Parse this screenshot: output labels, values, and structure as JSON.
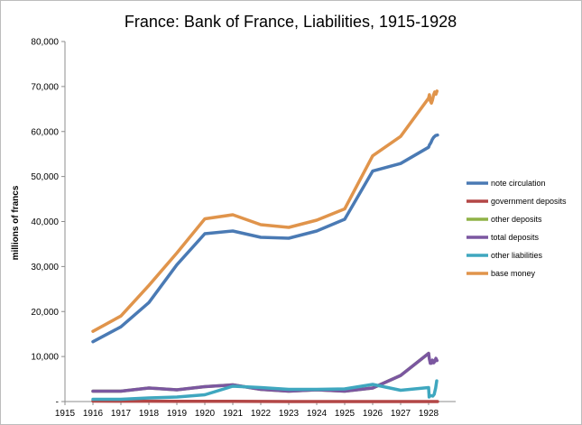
{
  "chart_data": {
    "type": "line",
    "title": "France: Bank of France, Liabilities, 1915-1928",
    "xlabel": "",
    "ylabel": "millions of francs",
    "xlim": [
      1915,
      1928.35
    ],
    "ylim": [
      0,
      80000
    ],
    "x_ticks": [
      "1915",
      "1916",
      "1917",
      "1918",
      "1919",
      "1920",
      "1921",
      "1922",
      "1923",
      "1924",
      "1925",
      "1926",
      "1927",
      "1928"
    ],
    "y_ticks": [
      "-",
      "10,000",
      "20,000",
      "30,000",
      "40,000",
      "50,000",
      "60,000",
      "70,000",
      "80,000"
    ],
    "legend_position": "right",
    "grid": false,
    "series": [
      {
        "name": "note circulation",
        "color": "#4a7ab4",
        "points": [
          [
            1916,
            13300
          ],
          [
            1917,
            16600
          ],
          [
            1918,
            22000
          ],
          [
            1919,
            30400
          ],
          [
            1920,
            37300
          ],
          [
            1921,
            37900
          ],
          [
            1922,
            36500
          ],
          [
            1923,
            36300
          ],
          [
            1924,
            37900
          ],
          [
            1925,
            40500
          ],
          [
            1926,
            51200
          ],
          [
            1927,
            52900
          ],
          [
            1928,
            56500
          ],
          [
            1928.03,
            57000
          ],
          [
            1928.08,
            57500
          ],
          [
            1928.13,
            58200
          ],
          [
            1928.18,
            58700
          ],
          [
            1928.25,
            59100
          ],
          [
            1928.32,
            59200
          ]
        ]
      },
      {
        "name": "government deposits",
        "color": "#b34746",
        "points": [
          [
            1916,
            100
          ],
          [
            1917,
            80
          ],
          [
            1918,
            80
          ],
          [
            1919,
            60
          ],
          [
            1920,
            60
          ],
          [
            1921,
            60
          ],
          [
            1922,
            30
          ],
          [
            1923,
            10
          ],
          [
            1924,
            10
          ],
          [
            1925,
            10
          ],
          [
            1926,
            10
          ],
          [
            1927,
            10
          ],
          [
            1928,
            10
          ],
          [
            1928.32,
            10
          ]
        ]
      },
      {
        "name": "other deposits",
        "color": "#8fb246",
        "points": [
          [
            1916,
            2300
          ],
          [
            1917,
            2300
          ],
          [
            1918,
            3000
          ],
          [
            1919,
            2600
          ],
          [
            1920,
            3300
          ],
          [
            1921,
            3700
          ],
          [
            1922,
            2700
          ],
          [
            1923,
            2300
          ],
          [
            1924,
            2600
          ],
          [
            1925,
            2300
          ],
          [
            1926,
            3000
          ],
          [
            1927,
            5800
          ],
          [
            1928,
            10700
          ]
        ]
      },
      {
        "name": "total deposits",
        "color": "#7b57a0",
        "points": [
          [
            1916,
            2300
          ],
          [
            1917,
            2300
          ],
          [
            1918,
            3000
          ],
          [
            1919,
            2600
          ],
          [
            1920,
            3300
          ],
          [
            1921,
            3700
          ],
          [
            1922,
            2700
          ],
          [
            1923,
            2300
          ],
          [
            1924,
            2600
          ],
          [
            1925,
            2300
          ],
          [
            1926,
            3000
          ],
          [
            1927,
            5800
          ],
          [
            1928,
            10700
          ],
          [
            1928.03,
            9400
          ],
          [
            1928.06,
            8500
          ],
          [
            1928.1,
            8500
          ],
          [
            1928.14,
            9200
          ],
          [
            1928.18,
            8600
          ],
          [
            1928.22,
            8900
          ],
          [
            1928.26,
            9600
          ],
          [
            1928.3,
            9100
          ]
        ]
      },
      {
        "name": "other liabilities",
        "color": "#3fa7bf",
        "points": [
          [
            1916,
            500
          ],
          [
            1917,
            500
          ],
          [
            1918,
            800
          ],
          [
            1919,
            1000
          ],
          [
            1920,
            1500
          ],
          [
            1921,
            3400
          ],
          [
            1922,
            3100
          ],
          [
            1923,
            2700
          ],
          [
            1924,
            2700
          ],
          [
            1925,
            2800
          ],
          [
            1926,
            3800
          ],
          [
            1927,
            2500
          ],
          [
            1928,
            3100
          ],
          [
            1928.02,
            1000
          ],
          [
            1928.06,
            1300
          ],
          [
            1928.1,
            1300
          ],
          [
            1928.15,
            1200
          ],
          [
            1928.2,
            1600
          ],
          [
            1928.25,
            3000
          ],
          [
            1928.29,
            4600
          ]
        ]
      },
      {
        "name": "base money",
        "color": "#e0944b",
        "points": [
          [
            1916,
            15600
          ],
          [
            1917,
            19000
          ],
          [
            1918,
            25800
          ],
          [
            1919,
            33000
          ],
          [
            1920,
            40600
          ],
          [
            1921,
            41500
          ],
          [
            1922,
            39300
          ],
          [
            1923,
            38700
          ],
          [
            1924,
            40300
          ],
          [
            1925,
            42800
          ],
          [
            1926,
            54600
          ],
          [
            1927,
            58900
          ],
          [
            1928,
            67400
          ],
          [
            1928.03,
            68200
          ],
          [
            1928.06,
            66800
          ],
          [
            1928.1,
            66300
          ],
          [
            1928.14,
            67000
          ],
          [
            1928.18,
            68200
          ],
          [
            1928.22,
            68800
          ],
          [
            1928.26,
            68300
          ],
          [
            1928.3,
            69000
          ]
        ]
      }
    ]
  }
}
